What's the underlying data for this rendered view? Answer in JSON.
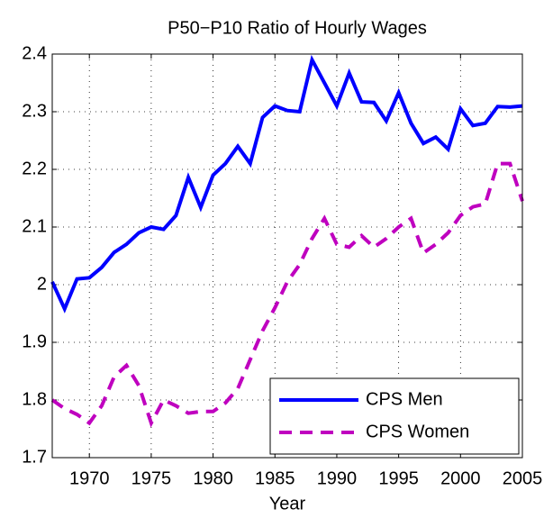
{
  "chart_data": {
    "type": "line",
    "title": "P50−P10 Ratio of Hourly Wages",
    "x_label": "Year",
    "x": [
      1967,
      1968,
      1969,
      1970,
      1971,
      1972,
      1973,
      1974,
      1975,
      1976,
      1977,
      1978,
      1979,
      1980,
      1981,
      1982,
      1983,
      1984,
      1985,
      1986,
      1987,
      1988,
      1989,
      1990,
      1991,
      1992,
      1993,
      1994,
      1995,
      1996,
      1997,
      1998,
      1999,
      2000,
      2001,
      2002,
      2003,
      2004,
      2005
    ],
    "series": [
      {
        "name": "CPS Men",
        "color": "#0000ff",
        "dash": "solid",
        "values": [
          2.005,
          1.958,
          2.01,
          2.012,
          2.03,
          2.056,
          2.07,
          2.09,
          2.1,
          2.096,
          2.12,
          2.186,
          2.134,
          2.19,
          2.21,
          2.24,
          2.21,
          2.29,
          2.31,
          2.302,
          2.3,
          2.39,
          2.35,
          2.31,
          2.367,
          2.317,
          2.316,
          2.284,
          2.333,
          2.28,
          2.245,
          2.256,
          2.235,
          2.305,
          2.276,
          2.28,
          2.309,
          2.308,
          2.31
        ]
      },
      {
        "name": "CPS Women",
        "color": "#bf00bf",
        "dash": "dashed",
        "values": [
          1.8,
          1.785,
          1.775,
          1.76,
          1.79,
          1.84,
          1.86,
          1.825,
          1.76,
          1.8,
          1.79,
          1.777,
          1.78,
          1.78,
          1.795,
          1.82,
          1.87,
          1.92,
          1.96,
          2.005,
          2.035,
          2.08,
          2.115,
          2.07,
          2.065,
          2.085,
          2.065,
          2.08,
          2.1,
          2.115,
          2.055,
          2.07,
          2.09,
          2.12,
          2.135,
          2.14,
          2.21,
          2.21,
          2.145
        ]
      }
    ],
    "xlim": [
      1967,
      2005
    ],
    "xticks": [
      1970,
      1975,
      1980,
      1985,
      1990,
      1995,
      2000,
      2005
    ],
    "ylim": [
      1.7,
      2.4
    ],
    "yticks": [
      1.7,
      1.8,
      1.9,
      2,
      2.1,
      2.2,
      2.3,
      2.4
    ],
    "grid": true,
    "legend": "lower right"
  }
}
